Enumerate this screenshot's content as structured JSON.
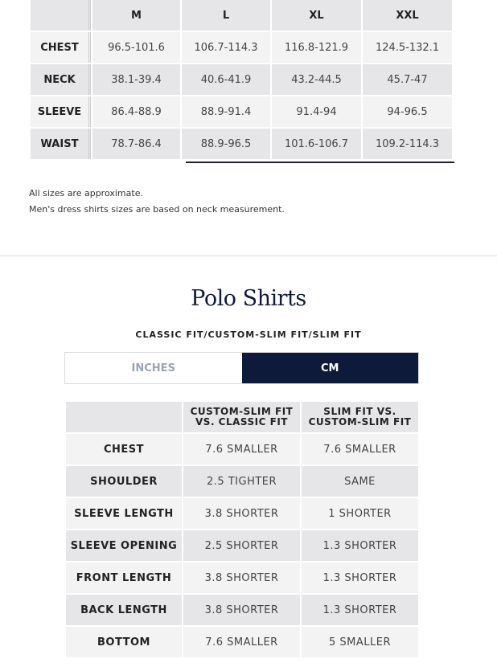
{
  "size_table": {
    "columns": [
      "",
      "M",
      "L",
      "XL",
      "XXL"
    ],
    "rows": [
      {
        "label": "CHEST",
        "values": [
          "96.5-101.6",
          "106.7-114.3",
          "116.8-121.9",
          "124.5-132.1"
        ]
      },
      {
        "label": "NECK",
        "values": [
          "38.1-39.4",
          "40.6-41.9",
          "43.2-44.5",
          "45.7-47"
        ]
      },
      {
        "label": "SLEEVE",
        "values": [
          "86.4-88.9",
          "88.9-91.4",
          "91.4-94",
          "94-96.5"
        ]
      },
      {
        "label": "WAIST",
        "values": [
          "78.7-86.4",
          "88.9-96.5",
          "101.6-106.7",
          "109.2-114.3"
        ]
      }
    ]
  },
  "notes": [
    "All sizes are approximate.",
    "Men's dress shirts sizes are based on neck measurement."
  ],
  "polo": {
    "title": "Polo Shirts",
    "subtitle": "CLASSIC FIT/CUSTOM-SLIM FIT/SLIM FIT",
    "unit_toggle": {
      "inches": "INCHES",
      "cm": "CM",
      "selected": "CM",
      "active_color": "#0d1a3a"
    },
    "columns": [
      "",
      "CUSTOM-SLIM FIT VS. CLASSIC FIT",
      "SLIM FIT VS. CUSTOM-SLIM FIT"
    ],
    "rows": [
      {
        "label": "CHEST",
        "values": [
          "7.6 SMALLER",
          "7.6 SMALLER"
        ]
      },
      {
        "label": "SHOULDER",
        "values": [
          "2.5 TIGHTER",
          "SAME"
        ]
      },
      {
        "label": "SLEEVE LENGTH",
        "values": [
          "3.8 SHORTER",
          "1 SHORTER"
        ]
      },
      {
        "label": "SLEEVE OPENING",
        "values": [
          "2.5 SHORTER",
          "1.3 SHORTER"
        ]
      },
      {
        "label": "FRONT LENGTH",
        "values": [
          "3.8 SHORTER",
          "1.3 SHORTER"
        ]
      },
      {
        "label": "BACK LENGTH",
        "values": [
          "3.8 SHORTER",
          "1.3 SHORTER"
        ]
      },
      {
        "label": "BOTTOM",
        "values": [
          "7.6 SMALLER",
          "5 SMALLER"
        ]
      }
    ]
  }
}
